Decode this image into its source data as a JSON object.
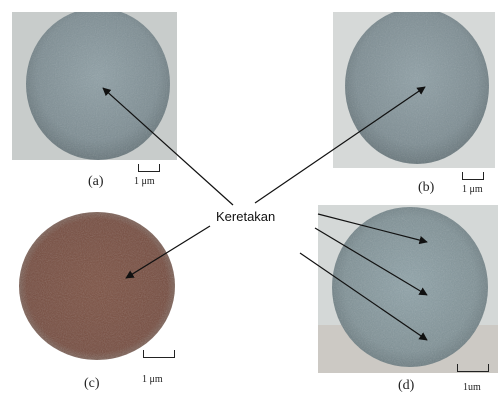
{
  "panels": [
    {
      "id": "a",
      "caption": "(a)",
      "scale": "1 μm"
    },
    {
      "id": "b",
      "caption": "(b)",
      "scale": "1 μm"
    },
    {
      "id": "c",
      "caption": "(c)",
      "scale": "1 μm"
    },
    {
      "id": "d",
      "caption": "(d)",
      "scale": "1um"
    }
  ],
  "label": "Keretakan",
  "colors": {
    "fiber_gray": "#7f8e93",
    "fiber_brown": "#7a4f3f",
    "arrow": "#111111"
  }
}
